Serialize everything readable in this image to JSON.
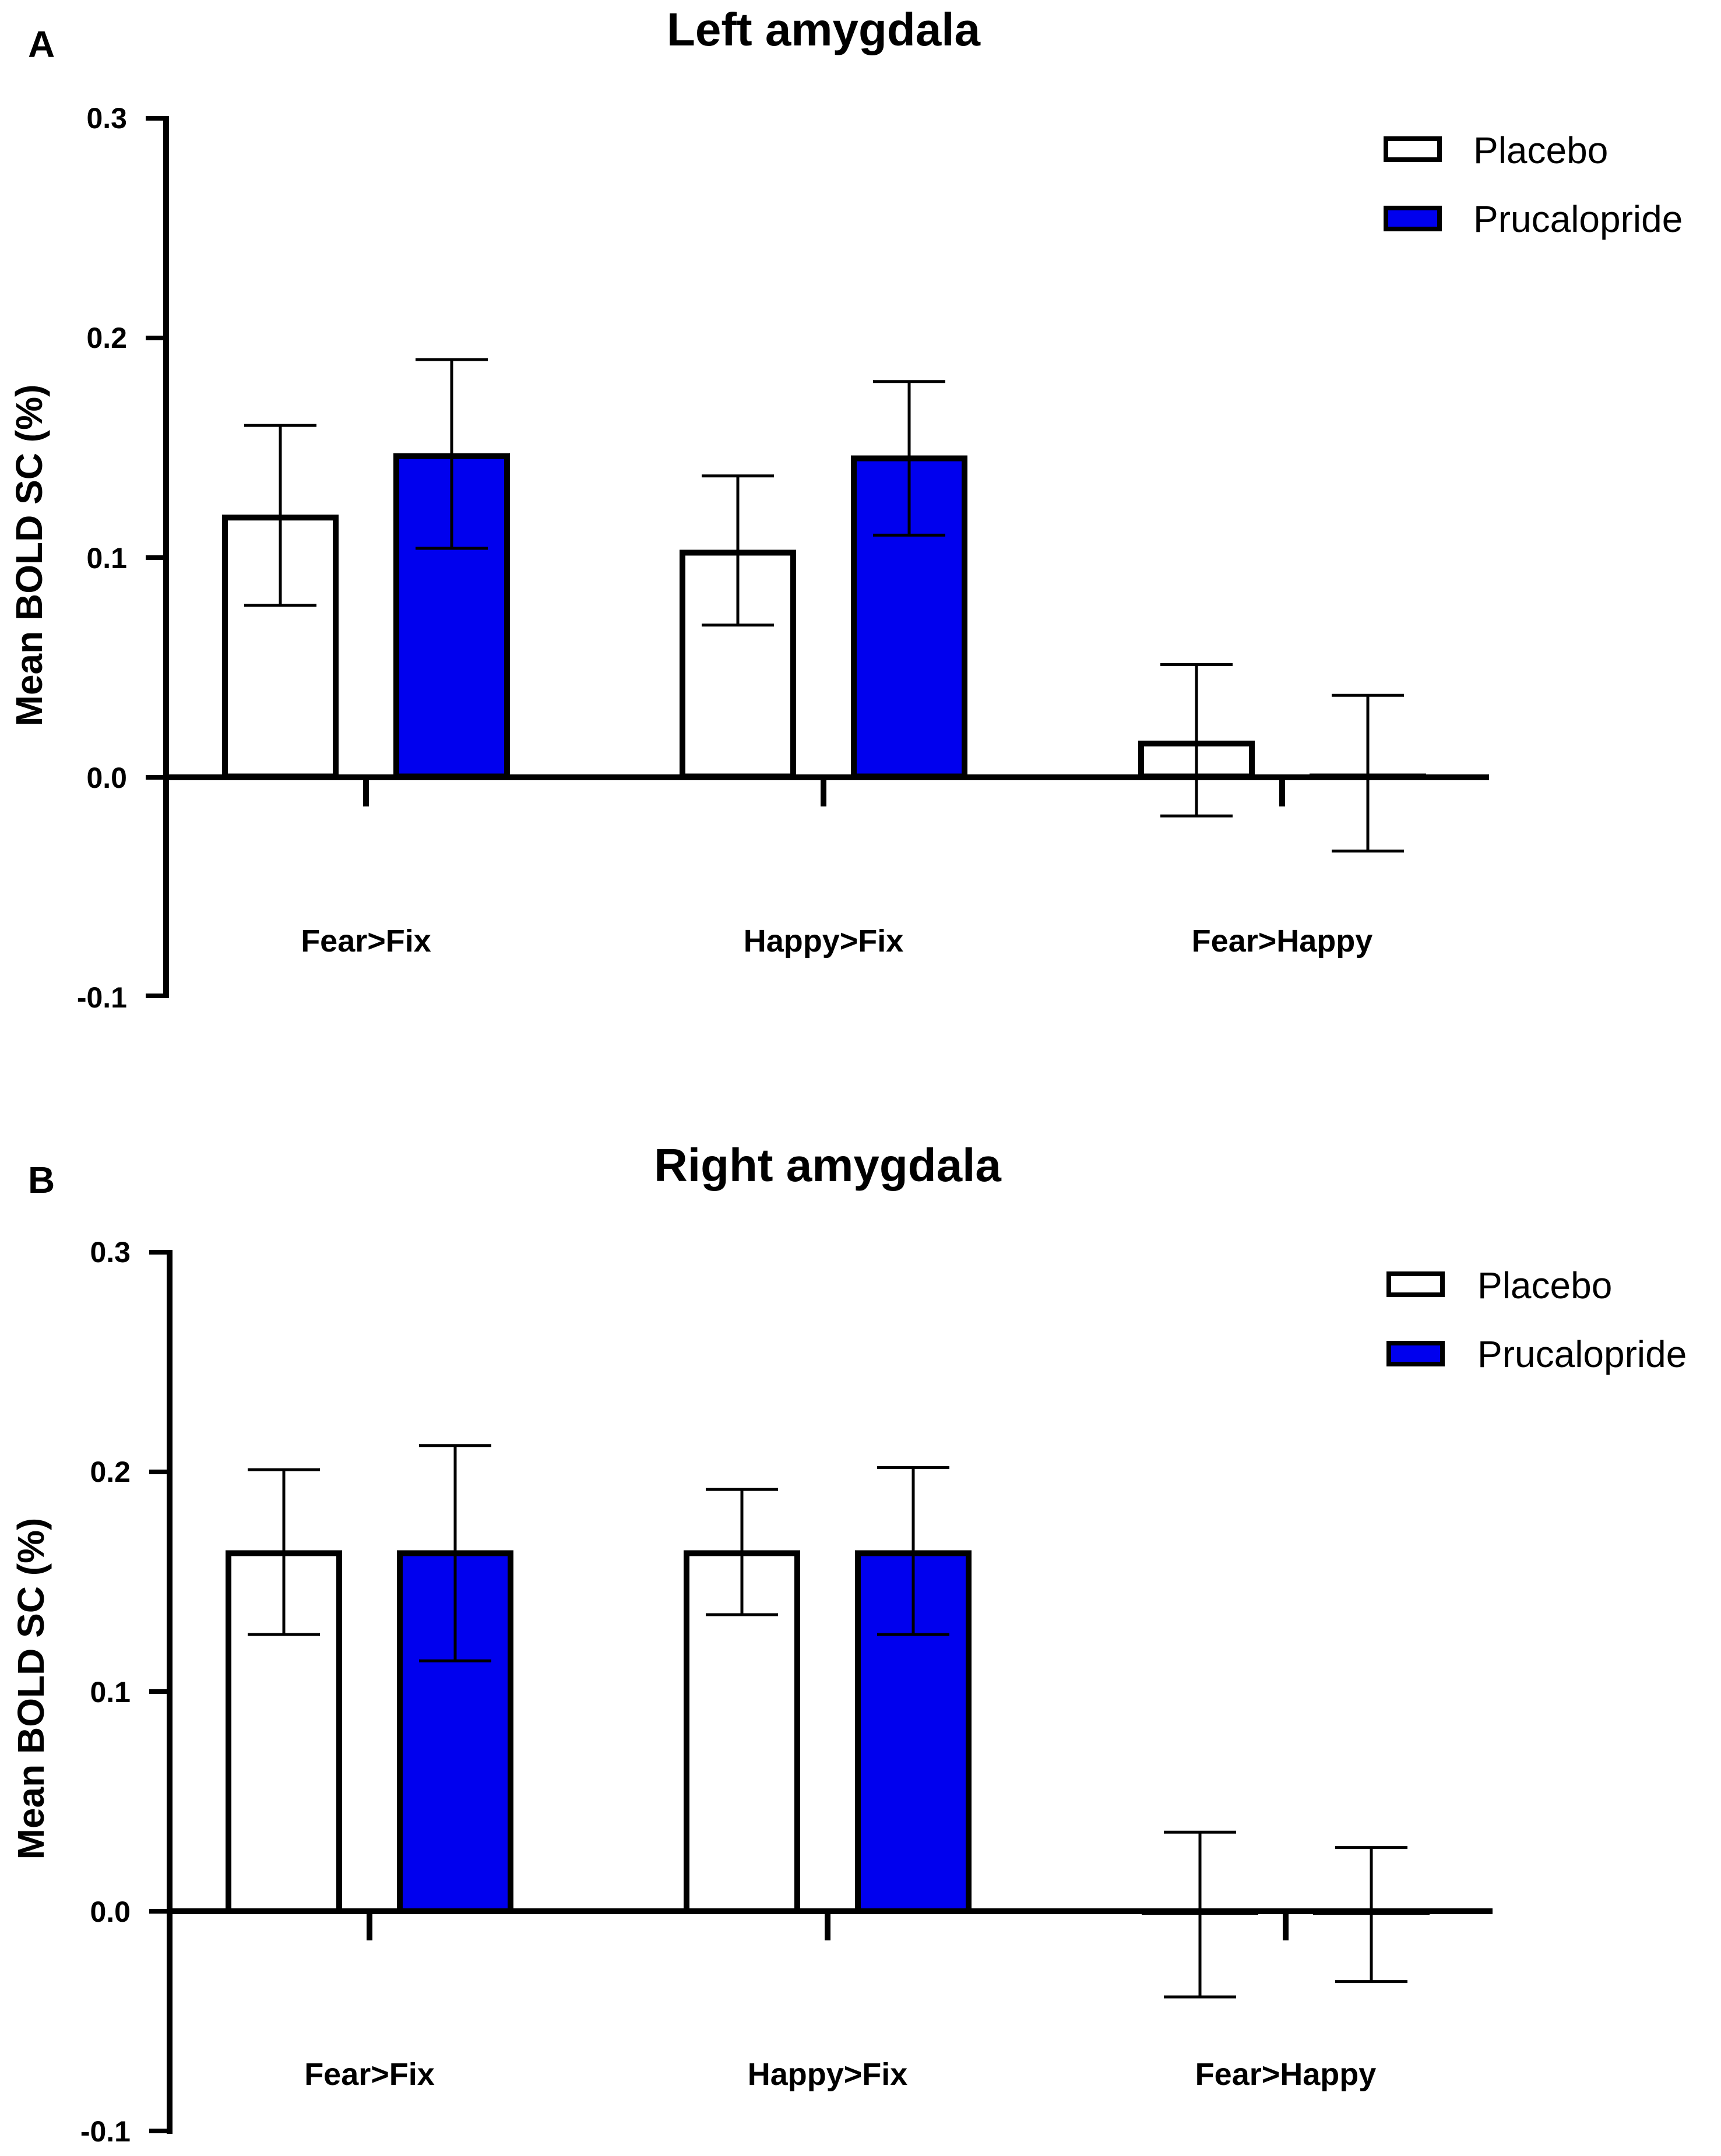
{
  "chart_data": [
    {
      "panel": "A",
      "type": "bar",
      "title": "Left amygdala",
      "ylabel": "Mean BOLD SC (%)",
      "xlabel": "",
      "ylim": [
        -0.1,
        0.3
      ],
      "yticks": [
        "0.3",
        "0.2",
        "0.1",
        "0.0",
        "-0.1"
      ],
      "categories": [
        "Fear>Fix",
        "Happy>Fix",
        "Fear>Happy"
      ],
      "series": [
        {
          "name": "Placebo",
          "color": "#ffffff",
          "values": [
            0.118,
            0.102,
            0.015
          ],
          "err_low": [
            0.078,
            0.069,
            -0.018
          ],
          "err_high": [
            0.16,
            0.137,
            0.051
          ]
        },
        {
          "name": "Prucalopride",
          "color": "#0000ee",
          "values": [
            0.146,
            0.145,
            0.0
          ],
          "err_low": [
            0.104,
            0.11,
            -0.034
          ],
          "err_high": [
            0.19,
            0.18,
            0.037
          ]
        }
      ],
      "legend": [
        "Placebo",
        "Prucalopride"
      ]
    },
    {
      "panel": "B",
      "type": "bar",
      "title": "Right amygdala",
      "ylabel": "Mean BOLD SC (%)",
      "xlabel": "",
      "ylim": [
        -0.1,
        0.3
      ],
      "yticks": [
        "0.3",
        "0.2",
        "0.1",
        "0.0",
        "-0.1"
      ],
      "categories": [
        "Fear>Fix",
        "Happy>Fix",
        "Fear>Happy"
      ],
      "series": [
        {
          "name": "Placebo",
          "color": "#ffffff",
          "values": [
            0.163,
            0.163,
            0.0
          ],
          "err_low": [
            0.126,
            0.135,
            -0.039
          ],
          "err_high": [
            0.201,
            0.192,
            0.036
          ]
        },
        {
          "name": "Prucalopride",
          "color": "#0000ee",
          "values": [
            0.163,
            0.163,
            0.0
          ],
          "err_low": [
            0.114,
            0.126,
            -0.032
          ],
          "err_high": [
            0.212,
            0.202,
            0.029
          ]
        }
      ],
      "legend": [
        "Placebo",
        "Prucalopride"
      ]
    }
  ]
}
